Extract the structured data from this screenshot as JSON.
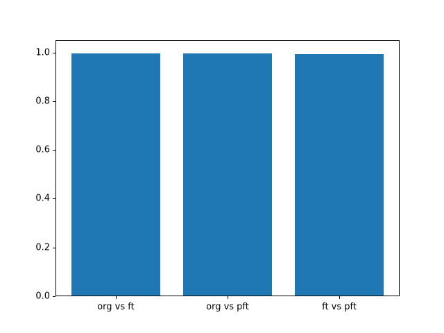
{
  "chart_data": {
    "type": "bar",
    "title": "",
    "xlabel": "",
    "ylabel": "",
    "categories": [
      "org vs ft",
      "org vs pft",
      "ft vs pft"
    ],
    "values": [
      0.999,
      0.999,
      0.995
    ],
    "bar_color": "#1f77b4",
    "axes_color": "#000000",
    "background": "#ffffff",
    "ylim": [
      0,
      1.05
    ],
    "yticks": [
      0.0,
      0.2,
      0.4,
      0.6,
      0.8,
      1.0
    ],
    "ytick_labels": [
      "0.0",
      "0.2",
      "0.4",
      "0.6",
      "0.8",
      "1.0"
    ],
    "bar_width_fraction": 0.8,
    "xlim": [
      -0.54,
      2.54
    ],
    "grid": false,
    "legend": false
  }
}
